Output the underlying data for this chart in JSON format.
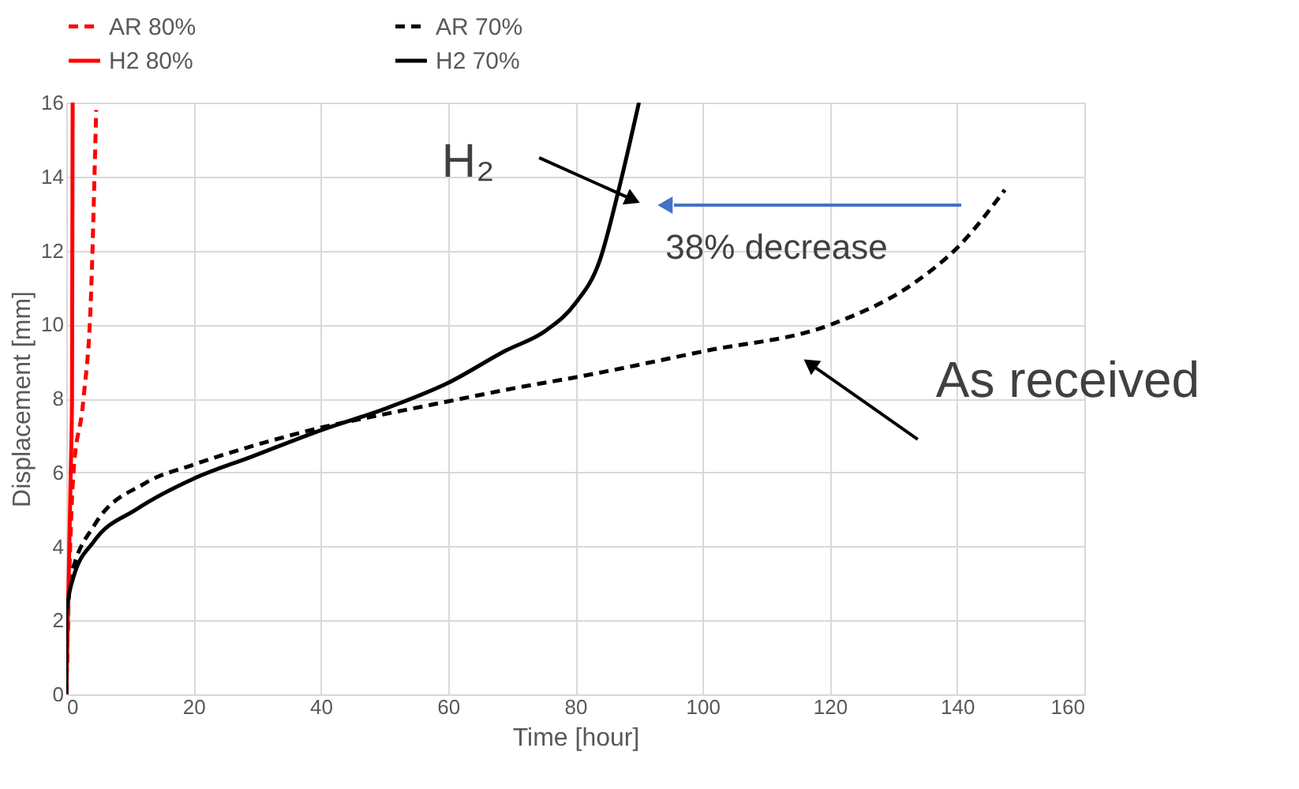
{
  "chart_data": {
    "type": "line",
    "xlabel": "Time [hour]",
    "ylabel": "Displacement [mm]",
    "xlim": [
      0,
      160
    ],
    "xticks": [
      0,
      20,
      40,
      60,
      80,
      100,
      120,
      140,
      160
    ],
    "ylim": [
      0,
      16
    ],
    "yticks": [
      0,
      2,
      4,
      6,
      8,
      10,
      12,
      14,
      16
    ],
    "grid": true,
    "legend": "top",
    "series": [
      {
        "name": "AR 80%",
        "color": "#ff0000",
        "line_style": "dashed",
        "x": [
          0,
          0.3,
          1.07,
          2.7,
          3.9,
          4.6,
          4.7
        ],
        "values": [
          0,
          2.14,
          5.85,
          7.99,
          10.85,
          15.13,
          15.8
        ]
      },
      {
        "name": "AR 70%",
        "color": "#000000",
        "line_style": "dashed",
        "x": [
          0,
          0.5,
          4.4,
          12.4,
          20,
          29.2,
          40,
          49.9,
          60,
          70.5,
          80,
          100.3,
          120.2,
          133.4,
          140.4,
          147.5
        ],
        "values": [
          0,
          3.0,
          4.57,
          5.71,
          6.21,
          6.71,
          7.21,
          7.57,
          7.92,
          8.28,
          8.57,
          9.28,
          10.0,
          11.14,
          12.14,
          13.64
        ]
      },
      {
        "name": "H2 80%",
        "color": "#ff0000",
        "line_style": "solid",
        "x": [
          0,
          0.3,
          0.7,
          0.9,
          1.0
        ],
        "values": [
          0,
          2.5,
          6,
          8,
          16
        ]
      },
      {
        "name": "H2 70%",
        "color": "#000000",
        "line_style": "solid",
        "x": [
          0,
          0,
          1.07,
          4.37,
          11,
          20,
          29.2,
          40,
          49.9,
          60,
          68.9,
          75.5,
          80,
          83.8,
          86.9,
          90
        ],
        "values": [
          0,
          2.14,
          3.14,
          4.14,
          5.0,
          5.83,
          6.43,
          7.14,
          7.71,
          8.42,
          9.28,
          9.85,
          10.57,
          11.71,
          13.7,
          16.0
        ]
      }
    ],
    "annotations": [
      {
        "text": "H₂",
        "x": 88.7,
        "y": 13.4
      },
      "38% decrease",
      {
        "text": "As received",
        "x": 117.2,
        "y": 8.9
      }
    ]
  }
}
